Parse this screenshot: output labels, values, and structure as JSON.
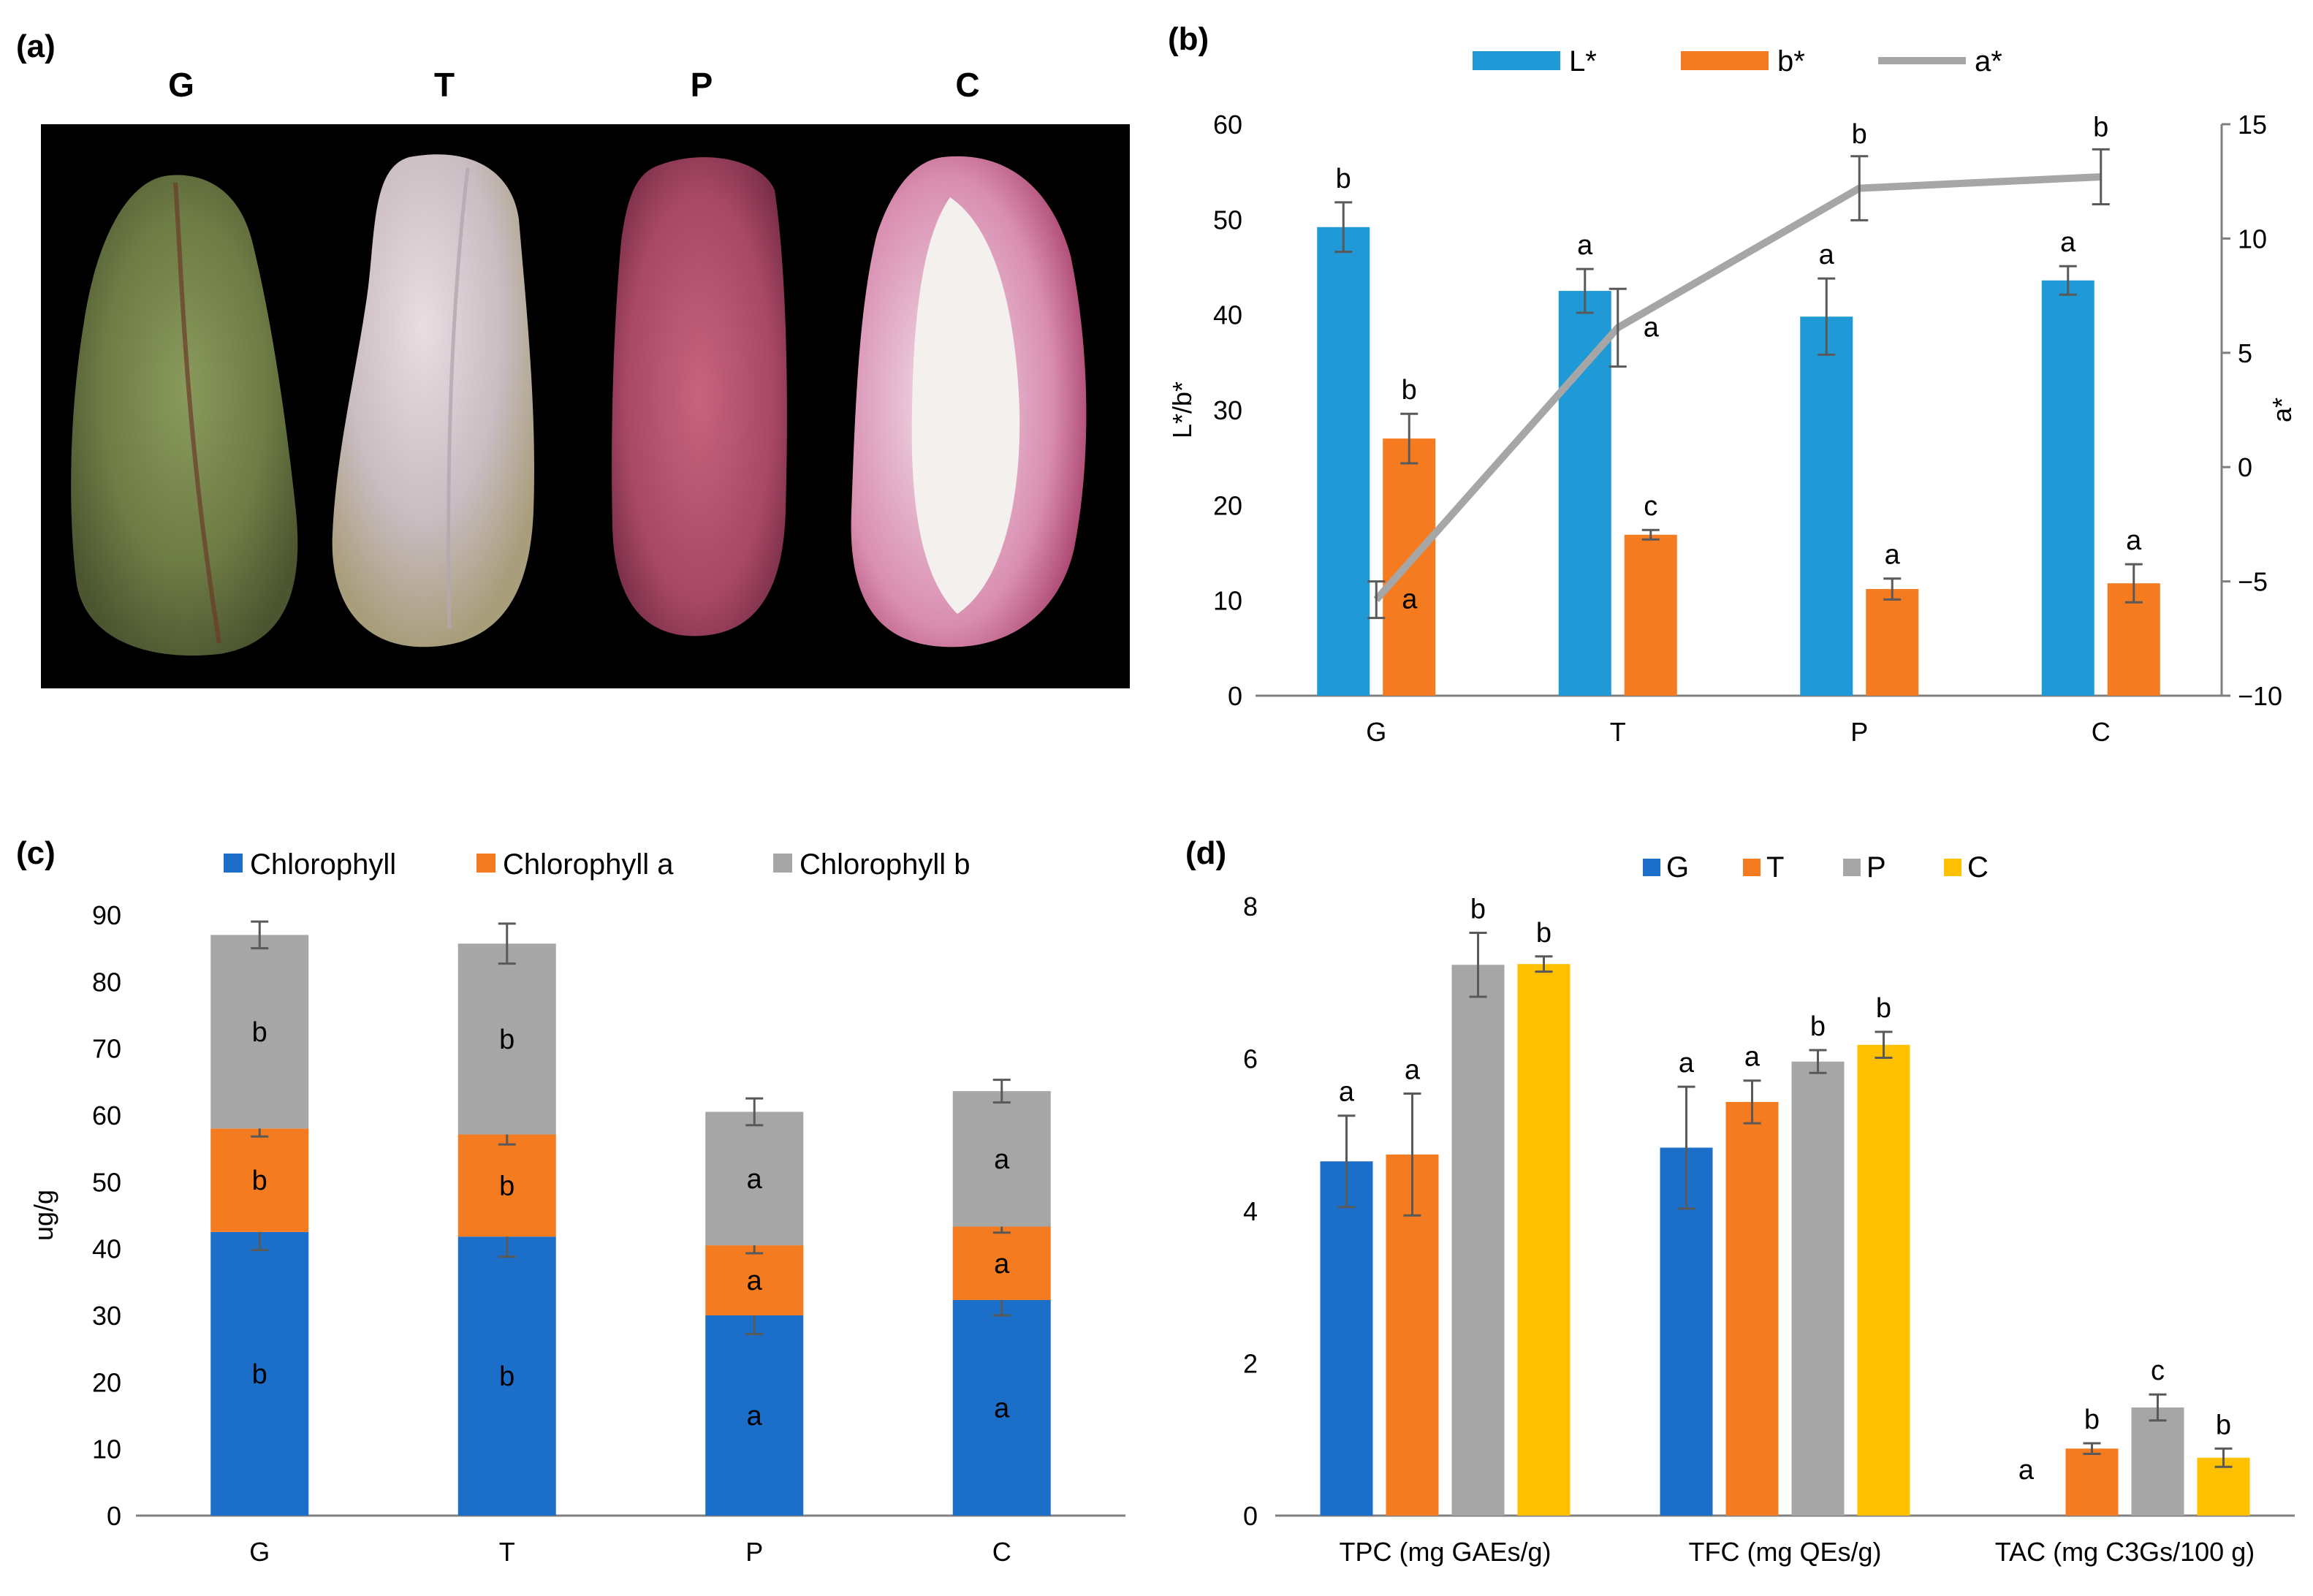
{
  "panels": {
    "a": "(a)",
    "b": "(b)",
    "c": "(c)",
    "d": "(d)"
  },
  "photo": {
    "labels": [
      "G",
      "T",
      "P",
      "C"
    ],
    "background": "#000000"
  },
  "colors": {
    "blue_b": "#1f9ad6",
    "orange": "#f47b20",
    "gray": "#a6a6a6",
    "blue_cd": "#1c6fc8",
    "yellow": "#ffc000",
    "error_bar": "#595959",
    "axis": "#7f7f7f"
  },
  "chart_data": [
    {
      "id": "b",
      "type": "bar+line",
      "categories": [
        "G",
        "T",
        "P",
        "C"
      ],
      "legend": [
        "L*",
        "b*",
        "a*"
      ],
      "ylabel_left": "L*/b*",
      "ylabel_right": "a*",
      "ylim_left": [
        0,
        60
      ],
      "yticks_left": [
        "0",
        "10",
        "20",
        "30",
        "40",
        "50",
        "60"
      ],
      "ylim_right": [
        -10,
        15
      ],
      "yticks_right": [
        "−10",
        "−5",
        "0",
        "5",
        "10",
        "15"
      ],
      "series": [
        {
          "name": "L*",
          "kind": "bar",
          "values": [
            49.2,
            42.5,
            39.8,
            43.6
          ],
          "err": [
            2.6,
            2.3,
            4.0,
            1.5
          ],
          "sig": [
            "b",
            "a",
            "a",
            "a"
          ]
        },
        {
          "name": "b*",
          "kind": "bar",
          "values": [
            27.0,
            16.9,
            11.2,
            11.8
          ],
          "err": [
            2.6,
            0.5,
            1.1,
            2.0
          ],
          "sig": [
            "b",
            "c",
            "a",
            "a"
          ]
        },
        {
          "name": "a*",
          "kind": "line",
          "axis": "right",
          "values": [
            -5.8,
            6.1,
            12.2,
            12.7
          ],
          "err": [
            0.8,
            1.7,
            1.4,
            1.2
          ],
          "sig": [
            "a",
            "a",
            "b",
            "b"
          ]
        }
      ]
    },
    {
      "id": "c",
      "type": "stacked-bar",
      "categories": [
        "G",
        "T",
        "P",
        "C"
      ],
      "legend": [
        "Chlorophyll",
        "Chlorophyll a",
        "Chlorophyll b"
      ],
      "ylabel": "ug/g",
      "ylim": [
        0,
        90
      ],
      "yticks": [
        "0",
        "10",
        "20",
        "30",
        "40",
        "50",
        "60",
        "70",
        "80",
        "90"
      ],
      "series": [
        {
          "name": "Chlorophyll",
          "values": [
            42.5,
            41.8,
            30.0,
            32.3
          ],
          "top_err": [
            2.7,
            3.0,
            2.8,
            2.3
          ],
          "sig": [
            "b",
            "b",
            "a",
            "a"
          ]
        },
        {
          "name": "Chlorophyll a",
          "values": [
            15.5,
            15.3,
            10.5,
            11.0
          ],
          "top_err": [
            1.2,
            1.5,
            1.2,
            0.9
          ],
          "sig": [
            "b",
            "b",
            "a",
            "a"
          ]
        },
        {
          "name": "Chlorophyll b",
          "values": [
            29.0,
            28.6,
            20.0,
            20.3
          ],
          "top_err": [
            2.0,
            3.0,
            2.0,
            1.7
          ],
          "sig": [
            "b",
            "b",
            "a",
            "a"
          ]
        }
      ]
    },
    {
      "id": "d",
      "type": "bar",
      "categories": [
        "TPC (mg GAEs/g)",
        "TFC (mg QEs/g)",
        "TAC (mg C3Gs/100 g)"
      ],
      "legend": [
        "G",
        "T",
        "P",
        "C"
      ],
      "ylim": [
        0,
        8
      ],
      "yticks": [
        "0",
        "2",
        "4",
        "6",
        "8"
      ],
      "series": [
        {
          "name": "G",
          "values": [
            4.65,
            4.83,
            0
          ],
          "err": [
            0.6,
            0.8,
            0
          ],
          "sig": [
            "a",
            "a",
            "a"
          ]
        },
        {
          "name": "T",
          "values": [
            4.74,
            5.43,
            0.88
          ],
          "err": [
            0.8,
            0.28,
            0.07
          ],
          "sig": [
            "a",
            "a",
            "b"
          ]
        },
        {
          "name": "P",
          "values": [
            7.23,
            5.96,
            1.42
          ],
          "err": [
            0.42,
            0.15,
            0.17
          ],
          "sig": [
            "b",
            "b",
            "c"
          ]
        },
        {
          "name": "C",
          "values": [
            7.24,
            6.18,
            0.76
          ],
          "err": [
            0.1,
            0.17,
            0.12
          ],
          "sig": [
            "b",
            "b",
            "b"
          ]
        }
      ]
    }
  ]
}
